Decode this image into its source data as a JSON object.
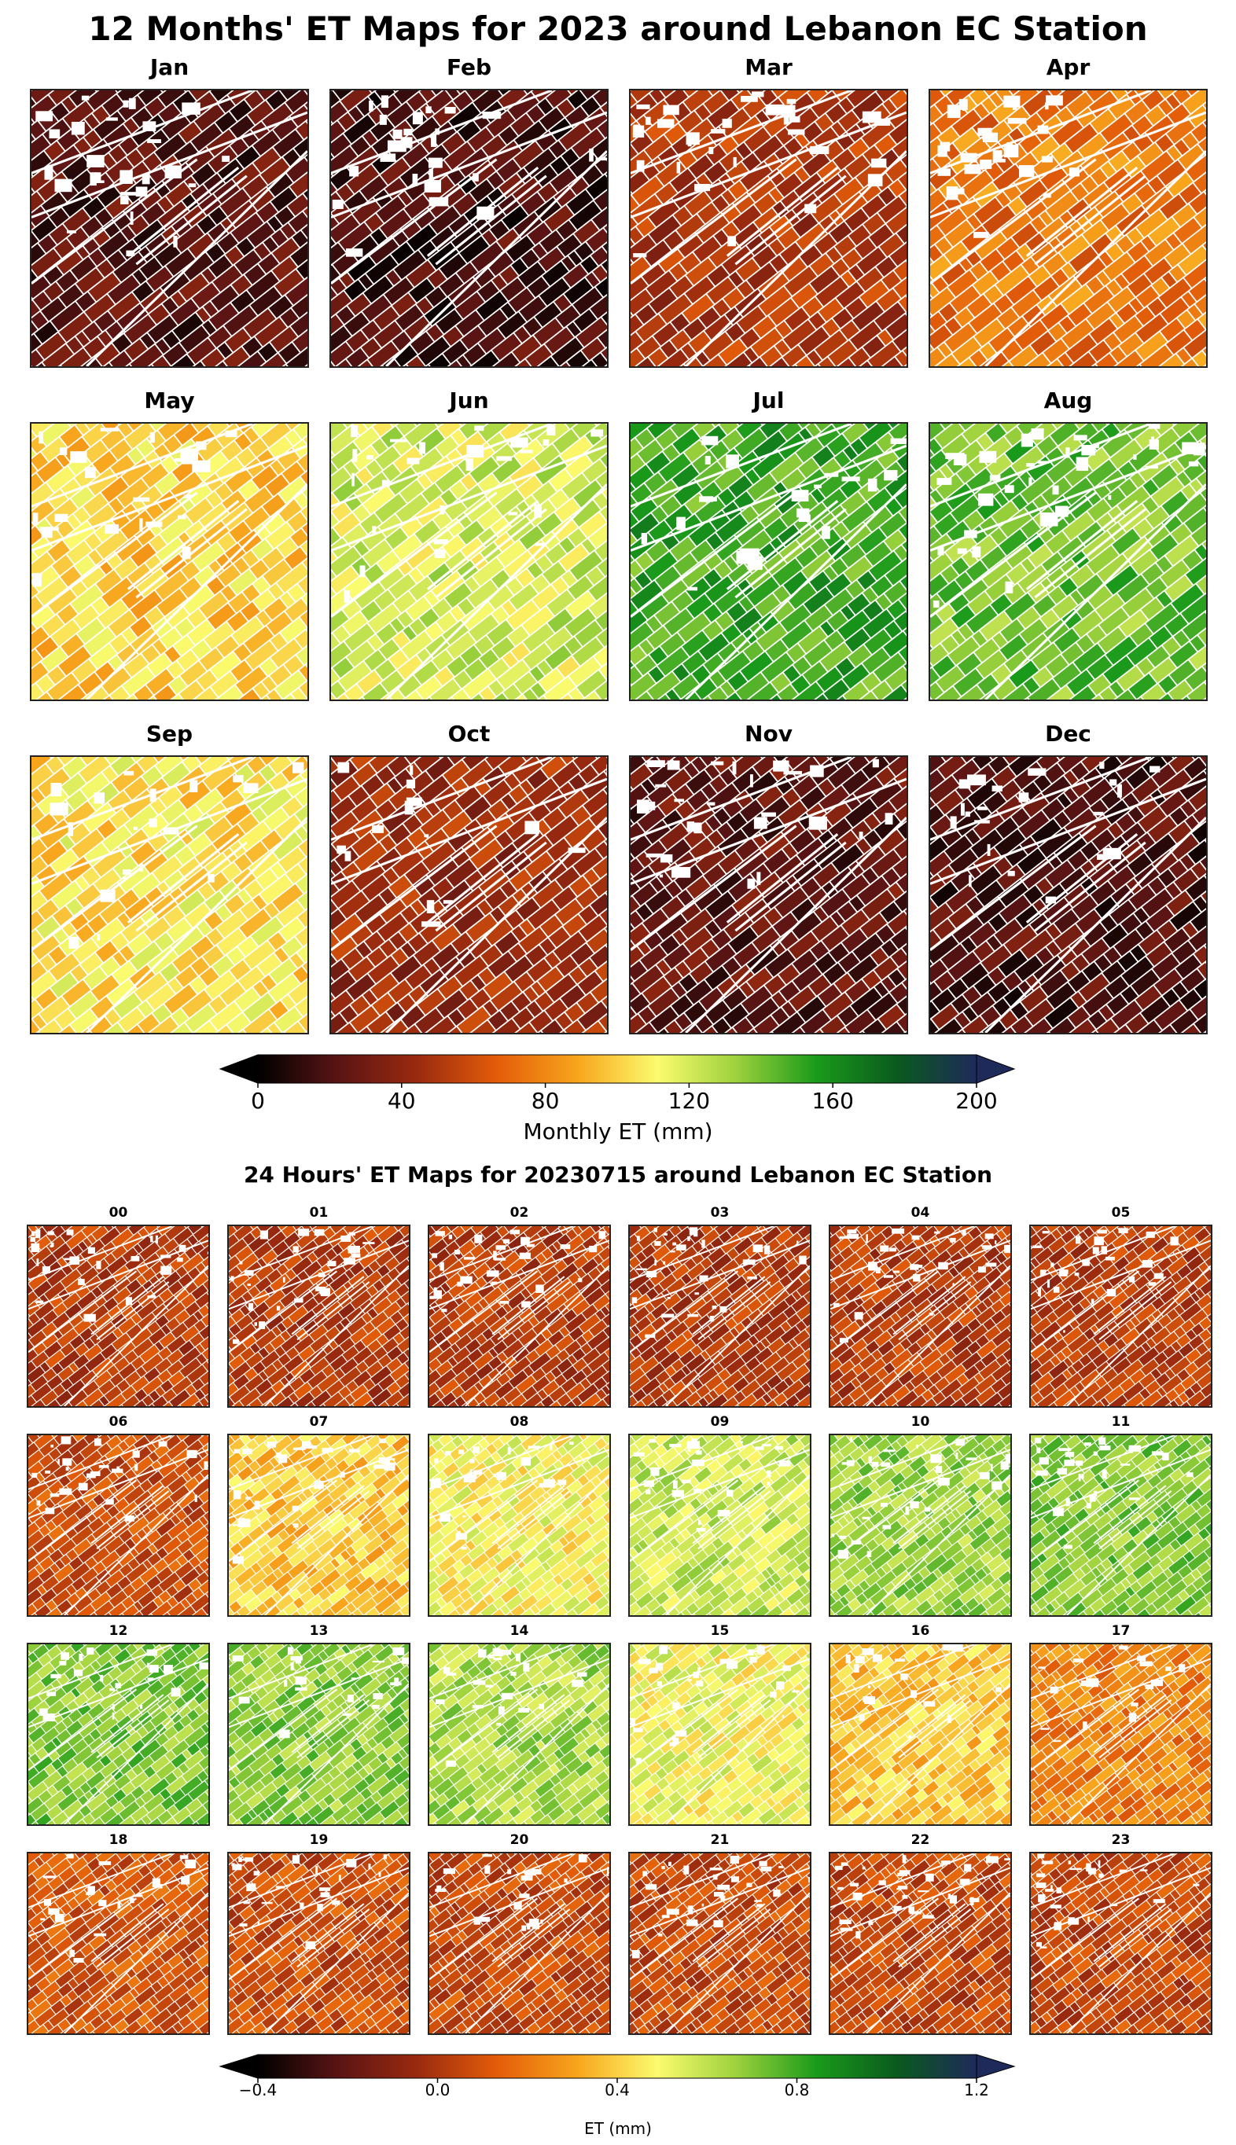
{
  "figure_title": "12 Months' ET Maps for 2023 around Lebanon EC Station",
  "hourly_title": "24 Hours' ET Maps for 20230715 around Lebanon EC Station",
  "chart_data": [
    {
      "type": "heatmap",
      "title": "12 Months' ET Maps for 2023 around Lebanon EC Station",
      "panels": [
        {
          "label": "Jan",
          "mean_et": 22
        },
        {
          "label": "Feb",
          "mean_et": 18
        },
        {
          "label": "Mar",
          "mean_et": 50
        },
        {
          "label": "Apr",
          "mean_et": 75
        },
        {
          "label": "May",
          "mean_et": 100
        },
        {
          "label": "Jun",
          "mean_et": 120
        },
        {
          "label": "Jul",
          "mean_et": 150
        },
        {
          "label": "Aug",
          "mean_et": 140
        },
        {
          "label": "Sep",
          "mean_et": 105
        },
        {
          "label": "Oct",
          "mean_et": 45
        },
        {
          "label": "Nov",
          "mean_et": 25
        },
        {
          "label": "Dec",
          "mean_et": 20
        }
      ],
      "colorbar": {
        "label": "Monthly ET (mm)",
        "range": [
          0,
          200
        ],
        "ticks": [
          "0",
          "40",
          "80",
          "120",
          "160",
          "200"
        ],
        "extend": "both"
      }
    },
    {
      "type": "heatmap",
      "title": "24 Hours' ET Maps for 20230715 around Lebanon EC Station",
      "panels": [
        {
          "label": "00",
          "mean_et": 0.02
        },
        {
          "label": "01",
          "mean_et": 0.02
        },
        {
          "label": "02",
          "mean_et": 0.02
        },
        {
          "label": "03",
          "mean_et": 0.02
        },
        {
          "label": "04",
          "mean_et": 0.02
        },
        {
          "label": "05",
          "mean_et": 0.03
        },
        {
          "label": "06",
          "mean_et": 0.08
        },
        {
          "label": "07",
          "mean_et": 0.38
        },
        {
          "label": "08",
          "mean_et": 0.48
        },
        {
          "label": "09",
          "mean_et": 0.58
        },
        {
          "label": "10",
          "mean_et": 0.66
        },
        {
          "label": "11",
          "mean_et": 0.7
        },
        {
          "label": "12",
          "mean_et": 0.7
        },
        {
          "label": "13",
          "mean_et": 0.68
        },
        {
          "label": "14",
          "mean_et": 0.64
        },
        {
          "label": "15",
          "mean_et": 0.5
        },
        {
          "label": "16",
          "mean_et": 0.38
        },
        {
          "label": "17",
          "mean_et": 0.22
        },
        {
          "label": "18",
          "mean_et": 0.1
        },
        {
          "label": "19",
          "mean_et": 0.08
        },
        {
          "label": "20",
          "mean_et": 0.07
        },
        {
          "label": "21",
          "mean_et": 0.07
        },
        {
          "label": "22",
          "mean_et": 0.06
        },
        {
          "label": "23",
          "mean_et": 0.06
        }
      ],
      "colorbar": {
        "label": "ET (mm)",
        "range": [
          -0.4,
          1.2
        ],
        "ticks": [
          "−0.4",
          "0.0",
          "0.4",
          "0.8",
          "1.2"
        ],
        "extend": "both"
      }
    }
  ],
  "colormap": [
    "#000000",
    "#5a1414",
    "#9a2a0f",
    "#e35c09",
    "#f8a51c",
    "#fbfb6e",
    "#9bd13c",
    "#1a9a1a",
    "#0a5a1e",
    "#1e2a5a"
  ]
}
